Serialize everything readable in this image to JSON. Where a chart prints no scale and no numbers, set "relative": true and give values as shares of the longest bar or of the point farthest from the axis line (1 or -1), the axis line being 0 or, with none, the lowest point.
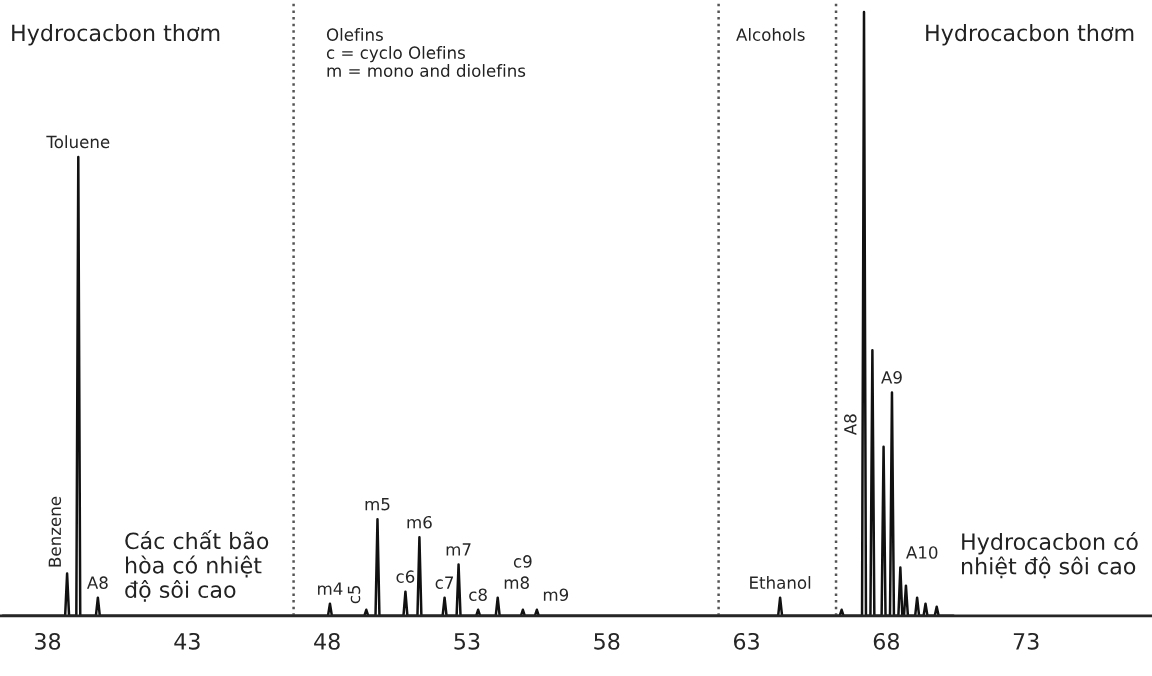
{
  "chart_data": {
    "type": "line",
    "relative": true,
    "x": [
      36.4,
      38.63,
      38.7,
      38.77,
      39.03,
      39.1,
      39.17,
      39.73,
      39.8,
      39.87,
      48.03,
      48.1,
      48.17,
      49.33,
      49.4,
      49.47,
      49.73,
      49.8,
      49.87,
      50.73,
      50.8,
      50.87,
      51.23,
      51.3,
      51.37,
      52.13,
      52.2,
      52.27,
      52.63,
      52.7,
      52.77,
      53.33,
      53.4,
      53.47,
      54.03,
      54.1,
      54.17,
      54.93,
      55.0,
      55.07,
      55.43,
      55.5,
      55.57,
      64.13,
      64.2,
      64.27,
      66.33,
      66.4,
      66.47,
      67.13,
      67.2,
      67.27,
      67.43,
      67.5,
      67.57,
      67.83,
      67.9,
      67.97,
      68.13,
      68.2,
      68.27,
      68.43,
      68.5,
      68.57,
      68.63,
      68.7,
      68.77,
      69.03,
      69.1,
      69.17,
      69.33,
      69.4,
      69.47,
      69.73,
      69.8,
      69.87,
      70.4
    ],
    "series": [
      {
        "color": "#111111",
        "values": [
          0,
          0,
          0.07,
          0,
          0,
          0.76,
          0,
          0,
          0.03,
          0,
          0,
          0.02,
          0,
          0,
          0.01,
          0,
          0,
          0.16,
          0,
          0,
          0.04,
          0,
          0,
          0.13,
          0,
          0,
          0.03,
          0,
          0,
          0.085,
          0,
          0,
          0.01,
          0,
          0,
          0.03,
          0,
          0,
          0.01,
          0,
          0,
          0.01,
          0,
          0,
          0.03,
          0,
          0,
          0.01,
          0,
          0,
          1,
          0,
          0,
          0.44,
          0,
          0,
          0.28,
          0,
          0,
          0.37,
          0,
          0,
          0.08,
          0,
          0,
          0.05,
          0,
          0,
          0.03,
          0,
          0,
          0.02,
          0,
          0,
          0.015,
          0,
          0
        ]
      }
    ],
    "xlim": [
      36.3,
      77.5
    ],
    "xticks": [
      38,
      43,
      48,
      53,
      58,
      63,
      68,
      73
    ],
    "tick_labels": "x",
    "grid": false,
    "legend": false,
    "marker": "none",
    "line_style": "solid",
    "ref_lines": [
      {
        "axis": "x",
        "value": 46.8,
        "label": null,
        "color": "#555555",
        "line_style": "dotted"
      },
      {
        "axis": "x",
        "value": 62.0,
        "label": null,
        "color": "#555555",
        "line_style": "dotted"
      },
      {
        "axis": "x",
        "value": 66.2,
        "label": null,
        "color": "#555555",
        "line_style": "dotted"
      }
    ],
    "annotations": [
      "Hydrocacbon thơm",
      "Các chất bão\nhòa có nhiệt\nđộ sôi cao",
      "Olefins\nc = cyclo Olefins\nm = mono and diolefins",
      "Alcohols",
      "Hydrocacbon thơm",
      "Hydrocacbon có\nnhiệt độ sôi cao",
      {
        "text": "Benzene",
        "x": 38.7,
        "y": 0.07
      },
      {
        "text": "Toluene",
        "x": 39.1,
        "y": 0.76
      },
      {
        "text": "A8",
        "x": 39.8,
        "y": 0.03
      },
      {
        "text": "m4",
        "x": 48.1,
        "y": 0.02
      },
      {
        "text": "c5",
        "x": 49.4,
        "y": 0.01
      },
      {
        "text": "m5",
        "x": 49.8,
        "y": 0.16
      },
      {
        "text": "c6",
        "x": 50.8,
        "y": 0.04
      },
      {
        "text": "m6",
        "x": 51.3,
        "y": 0.13
      },
      {
        "text": "c7",
        "x": 52.2,
        "y": 0.03
      },
      {
        "text": "m7",
        "x": 52.7,
        "y": 0.085
      },
      {
        "text": "c8",
        "x": 53.4,
        "y": 0.01
      },
      {
        "text": "m8",
        "x": 54.1,
        "y": 0.03
      },
      {
        "text": "c9",
        "x": 55.0,
        "y": 0.01
      },
      {
        "text": "m9",
        "x": 55.5,
        "y": 0.01
      },
      {
        "text": "Ethanol",
        "x": 64.2,
        "y": 0.03
      },
      {
        "text": "A8",
        "x": 67.15,
        "y": 0.29
      },
      {
        "text": "A9",
        "x": 68.2,
        "y": 0.37
      },
      {
        "text": "A10",
        "x": 68.5,
        "y": 0.08
      }
    ]
  }
}
